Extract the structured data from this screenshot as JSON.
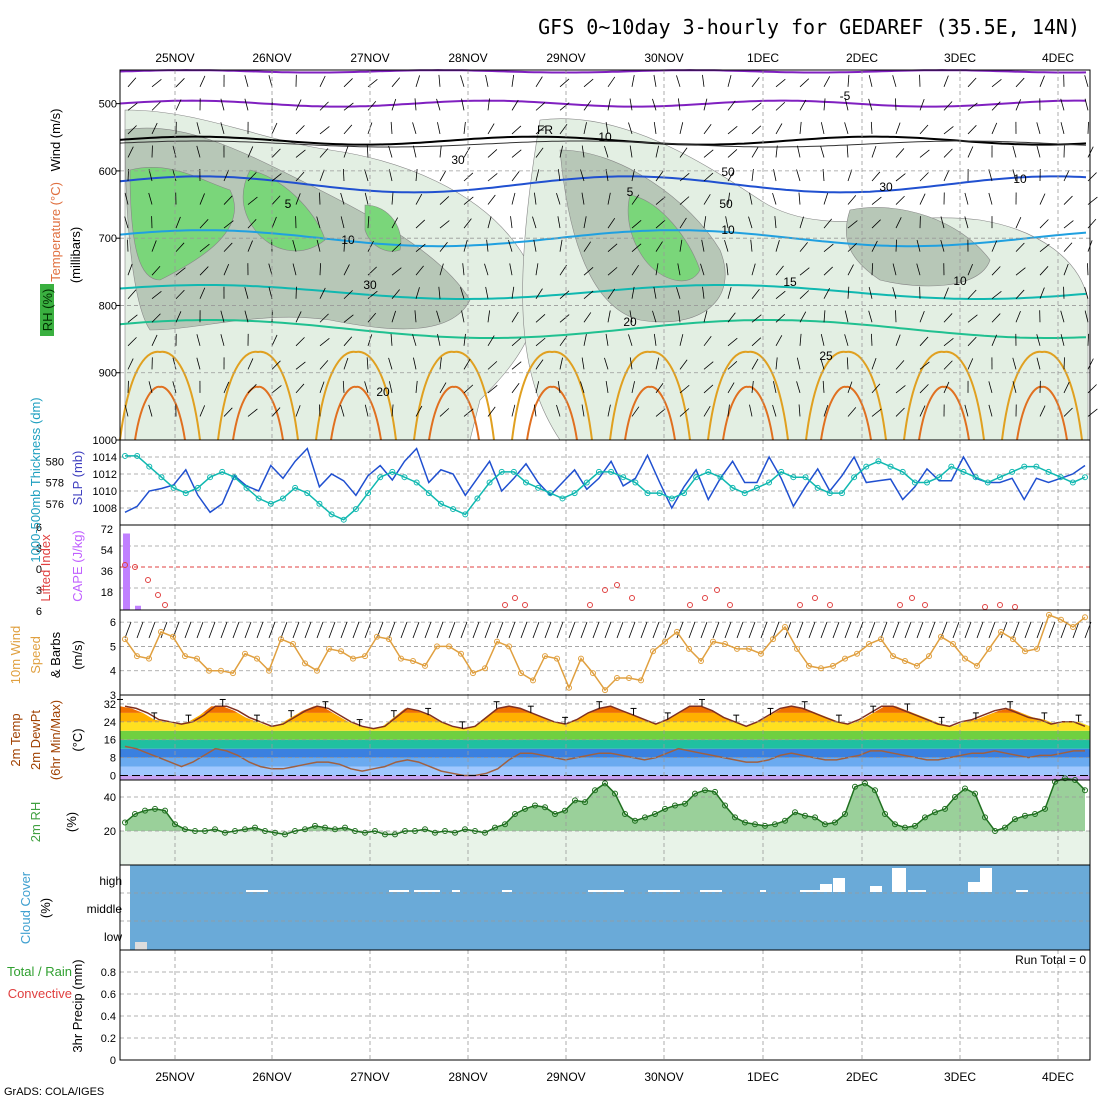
{
  "title": "GFS 0~10day 3-hourly for GEDAREF (35.5E, 14N)",
  "footer": "GrADS: COLA/IGES",
  "run_total": "Run Total = 0",
  "dates": [
    "25NOV",
    "26NOV",
    "27NOV",
    "28NOV",
    "29NOV",
    "30NOV",
    "1DEC",
    "2DEC",
    "3DEC",
    "4DEC"
  ],
  "colors": {
    "rh_green": "#7ad67a",
    "rh_dark": "#b7c7b7",
    "rh_light": "#e3efe3",
    "temp_blue": "#2050d0",
    "temp_cyan": "#20a0e0",
    "temp_teal": "#10b8b0",
    "temp_green": "#20c090",
    "temp_orange": "#e0a020",
    "temp_darkorange": "#e07020",
    "fr_black": "#000000",
    "temp_purple": "#8020c0",
    "cloud_blue": "#6aaad8",
    "cape_purple": "#c080ff",
    "li_red": "#e04040",
    "wind_orange": "#e0a040",
    "rh2m_green": "#60b860"
  },
  "chart_data": [
    {
      "type": "heatmap",
      "panel": "vertical",
      "labels": {
        "left1": "Wind (m/s)",
        "left2": "Temperature (°C)",
        "left3": "RH (%)",
        "axis": "(millibars)"
      },
      "y_ticks": [
        "500",
        "600",
        "700",
        "800",
        "900",
        "1000"
      ],
      "contour_labels": [
        "-5",
        "FR",
        "10",
        "30",
        "50",
        "5",
        "10",
        "15",
        "20",
        "25",
        "20",
        "10",
        "30",
        "50",
        "30",
        "10",
        "5",
        "10"
      ],
      "ylim": [
        450,
        1000
      ]
    },
    {
      "type": "line",
      "panel": "thickness_slp",
      "labels": {
        "left": "1000-500mb Thickness (dm)",
        "right": "SLP (mb)"
      },
      "y_ticks_left": [
        "580",
        "578",
        "576"
      ],
      "y_ticks_right": [
        "1014",
        "1012",
        "1010",
        "1008"
      ],
      "series": [
        {
          "name": "SLP",
          "values": [
            1007.5,
            1008.2,
            1010.0,
            1010.3,
            1010.7,
            1012.5,
            1009.5,
            1007.5,
            1008.5,
            1011.8,
            1010.6,
            1010.0,
            1013.0,
            1011.5,
            1013.5,
            1015.0,
            1010.5,
            1012.0,
            1011.2,
            1009.5,
            1011.8,
            1013.0,
            1011.3,
            1013.5,
            1015.0,
            1011.0,
            1012.5,
            1012.0,
            1009.5,
            1011.5,
            1013.5,
            1010.0,
            1011.5,
            1013.2,
            1011.0,
            1009.5,
            1011.0,
            1012.5,
            1010.2,
            1011.5,
            1013.5,
            1010.6,
            1011.5,
            1014.2,
            1011.0,
            1008.0,
            1010.5,
            1012.5,
            1009.0,
            1011.5,
            1013.5,
            1011.0,
            1011.0,
            1014.0,
            1011.5,
            1008.2,
            1010.5,
            1012.6,
            1010.0,
            1011.8,
            1014.0,
            1011.0,
            1011.2,
            1011.4,
            1009.0,
            1010.5,
            1012.6,
            1011.2,
            1011.2,
            1014.0,
            1011.5,
            1011.0,
            1011.0,
            1011.5,
            1009.0,
            1011.5,
            1011.0,
            1011.5,
            1012.0,
            1013.0
          ]
        },
        {
          "name": "Thickness",
          "values": [
            580.5,
            580.5,
            579.5,
            578.5,
            577.5,
            577.0,
            577.5,
            578.5,
            579.0,
            578.5,
            577.5,
            576.5,
            576.0,
            576.5,
            577.5,
            577.0,
            576.0,
            575.0,
            574.5,
            575.5,
            577.0,
            578.5,
            579.0,
            578.5,
            578.0,
            577.0,
            576.0,
            575.5,
            575.0,
            576.5,
            578.0,
            579.0,
            579.0,
            578.0,
            577.5,
            577.0,
            576.5,
            577.0,
            578.0,
            579.0,
            579.0,
            578.5,
            578.0,
            577.0,
            577.0,
            576.5,
            577.0,
            578.5,
            579.0,
            578.5,
            577.5,
            577.0,
            577.5,
            578.0,
            579.0,
            578.5,
            578.5,
            577.5,
            577.0,
            577.0,
            578.5,
            579.5,
            580.0,
            579.5,
            579.0,
            578.0,
            578.0,
            578.5,
            579.5,
            579.0,
            578.5,
            578.0,
            578.5,
            579.0,
            579.5,
            579.5,
            579.0,
            578.5,
            578.0,
            578.5
          ]
        }
      ],
      "ylim_right": [
        1006,
        1016
      ]
    },
    {
      "type": "bar",
      "panel": "stability",
      "labels": {
        "left": "Lifted Index",
        "right": "CAPE (J/kg)"
      },
      "y_ticks_left": [
        "-6",
        "-3",
        "0",
        "3",
        "6"
      ],
      "y_ticks_right": [
        "72",
        "54",
        "36",
        "18"
      ],
      "series": [
        {
          "name": "CAPE",
          "values": [
            72,
            4
          ]
        },
        {
          "name": "Lifted Index",
          "values": [
            0,
            0,
            1,
            3,
            6
          ]
        }
      ]
    },
    {
      "type": "line",
      "panel": "wind10m",
      "labels": {
        "left1": "10m Wind",
        "left2": "Speed",
        "left3": "& Barbs",
        "axis": "(m/s)"
      },
      "y_ticks": [
        "6",
        "5",
        "4",
        "3"
      ],
      "ylim": [
        3,
        6.5
      ],
      "series": [
        {
          "name": "Speed",
          "values": [
            5.3,
            4.6,
            4.5,
            5.6,
            5.4,
            4.6,
            4.5,
            4.0,
            4.0,
            3.9,
            4.7,
            4.5,
            4.0,
            5.3,
            5.1,
            4.3,
            4.0,
            4.9,
            4.8,
            4.5,
            4.6,
            5.4,
            5.3,
            4.5,
            4.4,
            4.2,
            5.0,
            5.0,
            4.7,
            3.9,
            4.1,
            5.2,
            5.0,
            3.9,
            3.6,
            4.6,
            4.5,
            3.3,
            4.5,
            3.9,
            3.2,
            3.7,
            3.7,
            3.6,
            4.8,
            5.2,
            5.6,
            4.9,
            4.4,
            5.2,
            5.1,
            4.9,
            4.9,
            4.7,
            5.3,
            5.8,
            4.9,
            4.2,
            4.1,
            4.2,
            4.5,
            4.7,
            5.1,
            5.3,
            4.6,
            4.4,
            4.2,
            4.6,
            5.4,
            5.1,
            4.5,
            4.2,
            4.9,
            5.6,
            5.3,
            4.8,
            4.9,
            6.3,
            6.1,
            5.8,
            6.2
          ]
        }
      ]
    },
    {
      "type": "area",
      "panel": "temp2m",
      "labels": {
        "left1": "2m Temp",
        "left2": "2m DewPt",
        "left3": "(6hr Min/Max)",
        "axis": "(°C)"
      },
      "y_ticks": [
        "32",
        "24",
        "16",
        "8",
        "0"
      ],
      "ylim": [
        -2,
        36
      ],
      "series": [
        {
          "name": "2m Temp",
          "values": [
            31,
            30,
            28,
            25,
            24,
            23,
            24,
            27,
            31,
            31,
            29,
            26,
            24,
            22,
            23,
            26,
            29,
            31,
            30,
            27,
            24,
            22,
            21,
            22,
            26,
            30,
            29,
            27,
            24,
            22,
            21,
            22,
            26,
            30,
            31,
            30,
            28,
            26,
            24,
            23,
            25,
            28,
            30,
            31,
            29,
            27,
            25,
            23,
            25,
            28,
            31,
            31,
            29,
            26,
            24,
            22,
            24,
            27,
            30,
            31,
            30,
            28,
            26,
            24,
            23,
            25,
            28,
            31,
            31,
            29,
            27,
            25,
            23,
            22,
            24,
            25,
            27,
            29,
            30,
            28,
            26,
            25,
            23,
            24,
            24,
            22
          ]
        },
        {
          "name": "2m DewPt",
          "values": [
            13,
            12,
            10,
            8,
            6,
            4,
            6,
            9,
            12,
            11,
            9,
            6,
            4,
            3,
            3,
            4,
            5,
            6,
            6,
            5,
            3,
            2,
            3,
            4,
            6,
            7,
            6,
            4,
            2,
            1,
            0,
            0,
            1,
            3,
            7,
            10,
            10,
            9,
            8,
            7,
            8,
            9,
            10,
            10,
            9,
            8,
            7,
            8,
            10,
            12,
            11,
            10,
            9,
            8,
            7,
            6,
            6,
            7,
            9,
            10,
            9,
            8,
            7,
            7,
            8,
            9,
            11,
            11,
            10,
            9,
            8,
            7,
            7,
            8,
            9,
            10,
            10,
            11,
            10,
            9,
            8,
            9,
            9,
            10,
            11,
            11
          ]
        }
      ]
    },
    {
      "type": "area",
      "panel": "rh2m",
      "labels": {
        "left1": "2m RH",
        "axis": "(%)"
      },
      "y_ticks": [
        "40",
        "20"
      ],
      "ylim": [
        0,
        50
      ],
      "series": [
        {
          "name": "2m RH",
          "values": [
            25,
            30,
            32,
            33,
            32,
            24,
            21,
            20,
            20,
            21,
            19,
            20,
            21,
            22,
            20,
            19,
            18,
            20,
            21,
            23,
            22,
            21,
            22,
            20,
            19,
            20,
            18,
            18,
            20,
            20,
            21,
            19,
            20,
            19,
            21,
            20,
            19,
            22,
            24,
            30,
            33,
            35,
            34,
            30,
            32,
            38,
            37,
            44,
            48,
            42,
            30,
            26,
            28,
            30,
            33,
            35,
            36,
            42,
            44,
            43,
            35,
            28,
            25,
            24,
            23,
            24,
            26,
            31,
            29,
            28,
            24,
            25,
            30,
            46,
            48,
            44,
            30,
            24,
            22,
            23,
            28,
            31,
            33,
            40,
            45,
            42,
            28,
            20,
            22,
            27,
            29,
            30,
            33,
            49,
            51,
            50,
            44
          ]
        }
      ]
    },
    {
      "type": "heatmap",
      "panel": "cloud",
      "labels": {
        "left1": "Cloud Cover",
        "axis": "(%)"
      },
      "y_ticks": [
        "high",
        "middle",
        "low"
      ]
    },
    {
      "type": "bar",
      "panel": "precip",
      "labels": {
        "left1": "Total / Rain",
        "left2": "Convective",
        "axis": "3hr Precip (mm)"
      },
      "y_ticks": [
        "0.8",
        "0.6",
        "0.4",
        "0.2",
        "0"
      ],
      "ylim": [
        0,
        1
      ],
      "values": []
    }
  ]
}
